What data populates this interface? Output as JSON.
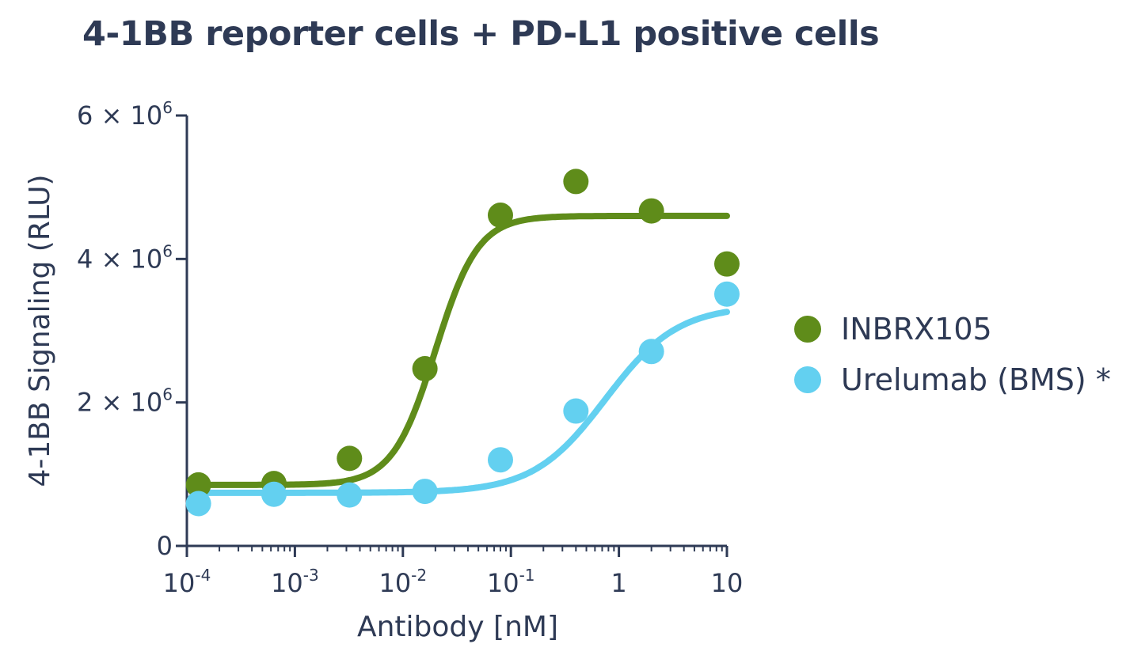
{
  "chart_data": {
    "type": "scatter",
    "title": "4-1BB reporter cells + PD-L1 positive cells",
    "xlabel": "Antibody [nM]",
    "ylabel": "4-1BB Signaling (RLU)",
    "xscale": "log",
    "xlim": [
      0.0001,
      10
    ],
    "ylim": [
      0,
      6000000
    ],
    "x_ticks": [
      {
        "value": 0.0001,
        "base": "10",
        "exp": "-4"
      },
      {
        "value": 0.001,
        "base": "10",
        "exp": "-3"
      },
      {
        "value": 0.01,
        "base": "10",
        "exp": "-2"
      },
      {
        "value": 0.1,
        "base": "10",
        "exp": "-1"
      },
      {
        "value": 1,
        "base": "1",
        "exp": ""
      },
      {
        "value": 10,
        "base": "10",
        "exp": ""
      }
    ],
    "y_ticks": [
      {
        "value": 0,
        "mant": "0",
        "base": "",
        "exp": ""
      },
      {
        "value": 2000000,
        "mant": "2 × ",
        "base": "10",
        "exp": "6"
      },
      {
        "value": 4000000,
        "mant": "4 × ",
        "base": "10",
        "exp": "6"
      },
      {
        "value": 6000000,
        "mant": "6 × ",
        "base": "10",
        "exp": "6"
      }
    ],
    "legend_position": "right",
    "series": [
      {
        "name": "INBRX105",
        "color": "#5f8c1a",
        "x": [
          0.000128,
          0.00064,
          0.0032,
          0.016,
          0.08,
          0.4,
          2,
          10
        ],
        "y": [
          850000,
          870000,
          1220000,
          2470000,
          4610000,
          5080000,
          4670000,
          3930000
        ],
        "fit": {
          "bottom": 850000,
          "top": 4600000,
          "ec50": 0.02,
          "hill": 2.2
        }
      },
      {
        "name": "Urelumab (BMS) *",
        "color": "#63d0f0",
        "x": [
          0.000128,
          0.00064,
          0.0032,
          0.016,
          0.08,
          0.4,
          2,
          10
        ],
        "y": [
          590000,
          720000,
          710000,
          760000,
          1200000,
          1880000,
          2710000,
          3510000
        ],
        "fit": {
          "bottom": 740000,
          "top": 3350000,
          "ec50": 0.75,
          "hill": 1.3
        }
      }
    ]
  }
}
